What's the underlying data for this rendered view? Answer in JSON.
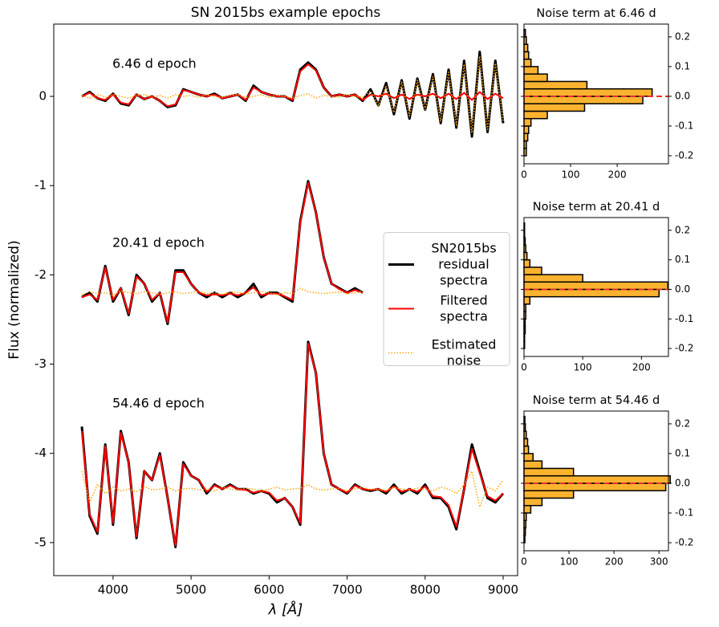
{
  "chart_data": [
    {
      "type": "line",
      "title": "SN 2015bs example epochs",
      "x_label": "λ [Å]",
      "y_label": "Flux (normalized)",
      "xlim": [
        3240,
        9185
      ],
      "ylim": [
        -5.37,
        0.81
      ],
      "xticks": [
        4000,
        5000,
        6000,
        7000,
        8000,
        9000
      ],
      "yticks": [
        -5,
        -4,
        -3,
        -2,
        -1,
        0
      ],
      "legend": "center right",
      "annotations": [
        "6.46 d epoch",
        "20.41 d epoch",
        "54.46 d epoch"
      ],
      "x": [
        3600,
        3700,
        3800,
        3900,
        4000,
        4100,
        4200,
        4300,
        4400,
        4500,
        4600,
        4700,
        4800,
        4900,
        5000,
        5100,
        5200,
        5300,
        5400,
        5500,
        5600,
        5700,
        5800,
        5900,
        6000,
        6100,
        6200,
        6300,
        6400,
        6500,
        6600,
        6700,
        6800,
        6900,
        7000,
        7100,
        7200,
        7300,
        7400,
        7500,
        7600,
        7700,
        7800,
        7900,
        8000,
        8100,
        8200,
        8300,
        8400,
        8500,
        8600,
        8700,
        8800,
        8900,
        9000
      ],
      "series": [
        {
          "name": "SN2015bs\nresidual\nspectra",
          "color": "#000000",
          "style": "solid",
          "width": 3,
          "values": [
            0.0,
            0.05,
            -0.02,
            -0.05,
            0.03,
            -0.08,
            -0.1,
            0.02,
            -0.03,
            0.0,
            -0.05,
            -0.12,
            -0.1,
            0.08,
            0.05,
            0.02,
            0.0,
            0.03,
            -0.02,
            0.0,
            0.02,
            -0.05,
            0.12,
            0.05,
            0.02,
            0.0,
            0.0,
            -0.05,
            0.3,
            0.38,
            0.3,
            0.1,
            0.0,
            0.02,
            0.0,
            0.02,
            -0.05,
            0.08,
            -0.1,
            0.15,
            -0.2,
            0.18,
            -0.25,
            0.2,
            -0.15,
            0.25,
            -0.3,
            0.3,
            -0.35,
            0.4,
            -0.45,
            0.5,
            -0.4,
            0.4,
            -0.3
          ]
        },
        {
          "name": "Filtered\nspectra",
          "color": "#ff0000",
          "style": "solid",
          "width": 2,
          "values": [
            0.0,
            0.04,
            -0.02,
            -0.04,
            0.02,
            -0.07,
            -0.09,
            0.02,
            -0.03,
            0.0,
            -0.05,
            -0.11,
            -0.09,
            0.07,
            0.05,
            0.02,
            0.0,
            0.02,
            -0.02,
            0.0,
            0.02,
            -0.04,
            0.1,
            0.05,
            0.02,
            0.0,
            0.0,
            -0.04,
            0.28,
            0.36,
            0.29,
            0.1,
            0.0,
            0.02,
            0.0,
            0.02,
            -0.04,
            0.02,
            0.0,
            0.03,
            -0.02,
            0.02,
            -0.03,
            0.02,
            0.0,
            0.03,
            -0.02,
            0.03,
            -0.03,
            0.04,
            -0.04,
            0.05,
            -0.03,
            0.03,
            -0.02
          ]
        },
        {
          "name": "Estimated\nnoise",
          "color": "#ffa500",
          "style": "dotted",
          "width": 1.5,
          "values": [
            0.01,
            -0.02,
            0.02,
            -0.01,
            0.02,
            0,
            -0.02,
            0.01,
            0.02,
            -0.01,
            0.01,
            -0.02,
            0.02,
            0,
            0.01,
            -0.01,
            0.02,
            0,
            -0.01,
            0.01,
            0.02,
            -0.01,
            0,
            0.02,
            -0.01,
            0.01,
            0,
            -0.02,
            0.01,
            0.03,
            -0.02,
            0.01,
            0,
            -0.01,
            0.02,
            0,
            -0.01,
            0.06,
            -0.1,
            0.12,
            -0.18,
            0.16,
            -0.22,
            0.18,
            -0.15,
            0.22,
            -0.28,
            0.27,
            -0.32,
            0.36,
            -0.41,
            0.45,
            -0.37,
            0.37,
            -0.28
          ]
        },
        {
          "color": "#000000",
          "style": "solid",
          "width": 3,
          "values": [
            -2.25,
            -2.2,
            -2.3,
            -1.9,
            -2.3,
            -2.15,
            -2.45,
            -2.0,
            -2.1,
            -2.3,
            -2.2,
            -2.55,
            -1.95,
            -1.95,
            -2.1,
            -2.2,
            -2.25,
            -2.2,
            -2.25,
            -2.2,
            -2.25,
            -2.2,
            -2.1,
            -2.25,
            -2.2,
            -2.2,
            -2.25,
            -2.3,
            -1.4,
            -0.95,
            -1.3,
            -1.8,
            -2.1,
            -2.15,
            -2.2,
            -2.15,
            -2.2,
            null,
            null,
            null,
            null,
            null,
            null,
            null,
            null,
            null,
            null,
            null,
            null,
            null,
            null,
            null,
            null,
            null,
            null
          ]
        },
        {
          "color": "#ff0000",
          "style": "solid",
          "width": 2,
          "values": [
            -2.25,
            -2.22,
            -2.28,
            -1.92,
            -2.28,
            -2.15,
            -2.43,
            -2.02,
            -2.1,
            -2.28,
            -2.2,
            -2.53,
            -1.97,
            -1.97,
            -2.1,
            -2.2,
            -2.23,
            -2.22,
            -2.23,
            -2.21,
            -2.23,
            -2.2,
            -2.14,
            -2.23,
            -2.21,
            -2.21,
            -2.24,
            -2.28,
            -1.42,
            -0.97,
            -1.3,
            -1.8,
            -2.1,
            -2.16,
            -2.2,
            -2.17,
            -2.2,
            null,
            null,
            null,
            null,
            null,
            null,
            null,
            null,
            null,
            null,
            null,
            null,
            null,
            null,
            null,
            null,
            null,
            null
          ]
        },
        {
          "color": "#ffa500",
          "style": "dotted",
          "width": 1.5,
          "values": [
            -2.22,
            -2.19,
            -2.21,
            -2.2,
            -2.23,
            -2.18,
            -2.2,
            -2.21,
            -2.19,
            -2.2,
            -2.22,
            -2.2,
            -2.19,
            -2.21,
            -2.2,
            -2.18,
            -2.21,
            -2.2,
            -2.22,
            -2.19,
            -2.2,
            -2.21,
            -2.2,
            -2.19,
            -2.2,
            -2.22,
            -2.2,
            -2.21,
            -2.15,
            -2.19,
            -2.2,
            -2.21,
            -2.2,
            -2.19,
            -2.21,
            -2.2,
            -2.19,
            null,
            null,
            null,
            null,
            null,
            null,
            null,
            null,
            null,
            null,
            null,
            null,
            null,
            null,
            null,
            null,
            null,
            null
          ]
        },
        {
          "color": "#000000",
          "style": "solid",
          "width": 3,
          "values": [
            -3.7,
            -4.7,
            -4.9,
            -3.9,
            -4.8,
            -3.75,
            -4.1,
            -4.95,
            -4.2,
            -4.3,
            -4.0,
            -4.5,
            -5.05,
            -4.1,
            -4.25,
            -4.3,
            -4.45,
            -4.35,
            -4.4,
            -4.35,
            -4.4,
            -4.4,
            -4.45,
            -4.42,
            -4.45,
            -4.55,
            -4.5,
            -4.6,
            -4.8,
            -2.75,
            -3.1,
            -4.0,
            -4.35,
            -4.4,
            -4.45,
            -4.35,
            -4.4,
            -4.42,
            -4.4,
            -4.45,
            -4.35,
            -4.45,
            -4.4,
            -4.45,
            -4.35,
            -4.5,
            -4.5,
            -4.6,
            -4.85,
            -4.4,
            -3.9,
            -4.2,
            -4.5,
            -4.55,
            -4.45
          ]
        },
        {
          "color": "#ff0000",
          "style": "solid",
          "width": 2,
          "values": [
            -3.75,
            -4.68,
            -4.88,
            -3.92,
            -4.78,
            -3.77,
            -4.1,
            -4.93,
            -4.2,
            -4.3,
            -4.02,
            -4.5,
            -5.03,
            -4.12,
            -4.25,
            -4.3,
            -4.43,
            -4.36,
            -4.4,
            -4.36,
            -4.4,
            -4.41,
            -4.44,
            -4.42,
            -4.44,
            -4.53,
            -4.5,
            -4.6,
            -4.78,
            -2.77,
            -3.1,
            -4.0,
            -4.35,
            -4.4,
            -4.44,
            -4.36,
            -4.4,
            -4.41,
            -4.4,
            -4.43,
            -4.37,
            -4.43,
            -4.4,
            -4.43,
            -4.37,
            -4.48,
            -4.49,
            -4.58,
            -4.82,
            -4.4,
            -3.95,
            -4.22,
            -4.48,
            -4.53,
            -4.45
          ]
        },
        {
          "color": "#ffa500",
          "style": "dotted",
          "width": 1.5,
          "values": [
            -4.2,
            -4.55,
            -4.35,
            -4.45,
            -4.38,
            -4.42,
            -4.4,
            -4.43,
            -4.37,
            -4.41,
            -4.4,
            -4.38,
            -4.42,
            -4.4,
            -4.39,
            -4.41,
            -4.4,
            -4.42,
            -4.38,
            -4.4,
            -4.41,
            -4.39,
            -4.4,
            -4.42,
            -4.4,
            -4.38,
            -4.41,
            -4.4,
            -4.39,
            -4.35,
            -4.4,
            -4.41,
            -4.4,
            -4.39,
            -4.42,
            -4.4,
            -4.38,
            -4.41,
            -4.4,
            -4.42,
            -4.38,
            -4.4,
            -4.41,
            -4.39,
            -4.4,
            -4.42,
            -4.38,
            -4.4,
            -4.45,
            -4.35,
            -4.2,
            -4.6,
            -4.38,
            -4.42,
            -4.3
          ]
        }
      ]
    },
    {
      "type": "histogram",
      "title": "Noise term at 6.46 d",
      "color": "#fbb32f",
      "edgecolor": "#000000",
      "hline": 0,
      "hline_color": "#e8312a",
      "bins": [
        -0.2,
        -0.175,
        -0.15,
        -0.125,
        -0.1,
        -0.075,
        -0.05,
        -0.025,
        0,
        0.025,
        0.05,
        0.075,
        0.1,
        0.125,
        0.15,
        0.175,
        0.2,
        0.225
      ],
      "counts": [
        5,
        5,
        8,
        10,
        15,
        50,
        130,
        255,
        275,
        135,
        50,
        30,
        15,
        10,
        8,
        5,
        3
      ],
      "xlim": [
        0,
        310
      ],
      "xticks": [
        0,
        100,
        200
      ],
      "ylim": [
        -0.227,
        0.243
      ],
      "yticks": [
        -0.2,
        -0.1,
        {
          "value": 0,
          "label": "0.0"
        },
        0.1,
        0.2
      ]
    },
    {
      "type": "histogram",
      "title": "Noise term at 20.41 d",
      "color": "#fbb32f",
      "edgecolor": "#000000",
      "hline": 0,
      "hline_color": "#e8312a",
      "bins": [
        -0.2,
        -0.175,
        -0.15,
        -0.125,
        -0.1,
        -0.075,
        -0.05,
        -0.025,
        0,
        0.025,
        0.05,
        0.075,
        0.1,
        0.125,
        0.15,
        0.175,
        0.2,
        0.225
      ],
      "counts": [
        1,
        1,
        2,
        2,
        3,
        3,
        10,
        230,
        245,
        100,
        30,
        10,
        5,
        3,
        2,
        1,
        1
      ],
      "xlim": [
        0,
        246
      ],
      "xticks": [
        0,
        100,
        200
      ],
      "ylim": [
        -0.227,
        0.243
      ],
      "yticks": [
        -0.2,
        -0.1,
        {
          "value": 0,
          "label": "0.0"
        },
        0.1,
        0.2
      ]
    },
    {
      "type": "histogram",
      "title": "Noise term at 54.46 d",
      "color": "#fbb32f",
      "edgecolor": "#000000",
      "hline": 0,
      "hline_color": "#e8312a",
      "bins": [
        -0.2,
        -0.175,
        -0.15,
        -0.125,
        -0.1,
        -0.075,
        -0.05,
        -0.025,
        0,
        0.025,
        0.05,
        0.075,
        0.1,
        0.125,
        0.15,
        0.175,
        0.2,
        0.225
      ],
      "counts": [
        2,
        3,
        4,
        5,
        15,
        40,
        110,
        315,
        325,
        110,
        40,
        20,
        10,
        8,
        5,
        3,
        2
      ],
      "xlim": [
        0,
        321
      ],
      "xticks": [
        0,
        100,
        200,
        300
      ],
      "ylim": [
        -0.227,
        0.243
      ],
      "yticks": [
        -0.2,
        -0.1,
        {
          "value": 0,
          "label": "0.0"
        },
        0.1,
        0.2
      ]
    }
  ]
}
